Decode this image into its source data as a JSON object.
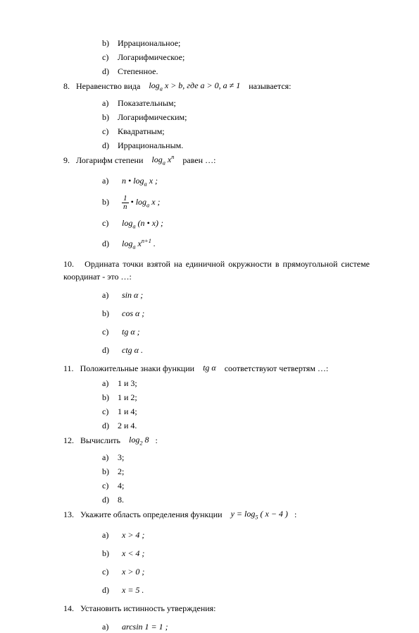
{
  "q7_opts": {
    "b": "Иррациональное;",
    "c": "Логарифмическое;",
    "d": "Степенное."
  },
  "q8": {
    "num": "8.",
    "text1": "Неравенство вида",
    "formula": "log<sub>a</sub> x &gt; b, где a &gt; 0, a ≠ 1",
    "text2": "называется:",
    "a": "Показательным;",
    "b": "Логарифмическим;",
    "c": "Квадратным;",
    "d": "Иррациональным."
  },
  "q9": {
    "num": "9.",
    "text1": "Логарифм степени",
    "formula": "log<sub>a</sub> x<sup>n</sup>",
    "text2": "равен …:",
    "a": "n • log<sub>a</sub> x ;",
    "b_frac_num": "1",
    "b_frac_den": "n",
    "b_rest": " • log<sub>a</sub> x ;",
    "c": "log<sub>a</sub> (n • x) ;",
    "d": "log<sub>a</sub> x<sup>n+1</sup> ."
  },
  "q10": {
    "num": "10.",
    "text": "Ордината точки взятой на единичной окружности в прямоугольной системе координат - это …:",
    "a": "sin α ;",
    "b": "cos α ;",
    "c": "tg α ;",
    "d": "ctg α ."
  },
  "q11": {
    "num": "11.",
    "text1": "Положительные знаки функции",
    "formula": "tg α",
    "text2": "соответствуют четвертям …:",
    "a": "1 и 3;",
    "b": "1 и 2;",
    "c": "1 и 4;",
    "d": "2 и 4."
  },
  "q12": {
    "num": "12.",
    "text": "Вычислить",
    "formula": "log<sub>2</sub> 8",
    "text2": ":",
    "a": "3;",
    "b": "2;",
    "c": "4;",
    "d": "8."
  },
  "q13": {
    "num": "13.",
    "text": "Укажите область определения функции",
    "formula": "y = log<sub>5</sub> ( x − 4 )",
    "text2": ":",
    "a": "x &gt; 4 ;",
    "b": "x &lt; 4 ;",
    "c": "x &gt; 0 ;",
    "d": "x = 5 ."
  },
  "q14": {
    "num": "14.",
    "text": "Установить истинность утверждения:",
    "a": "arcsin 1 = 1 ;"
  }
}
